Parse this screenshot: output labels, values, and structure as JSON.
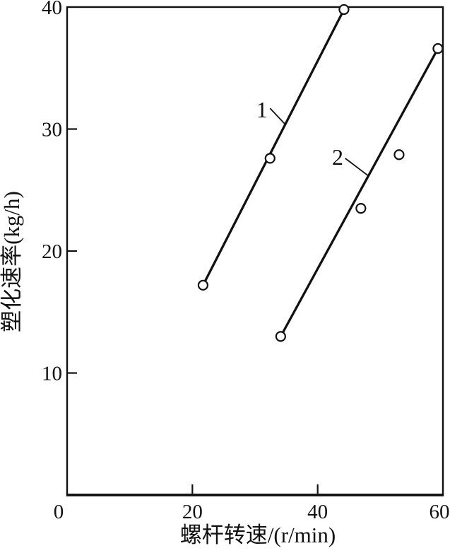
{
  "figure": {
    "background": "#ffffff",
    "ink_color": "#111111",
    "point_fill": "#ffffff"
  },
  "chart_data": {
    "type": "line",
    "title": "",
    "xlabel": "螺杆转速/(r/min)",
    "ylabel": "塑化速率(kg/h)",
    "xlim": [
      0,
      60
    ],
    "ylim": [
      0,
      40
    ],
    "xticks": [
      0,
      20,
      40,
      60
    ],
    "yticks": [
      10,
      20,
      30,
      40
    ],
    "grid": false,
    "legend_position": "none",
    "marker": "open-circle",
    "series": [
      {
        "name": "1",
        "points": [
          [
            21.7,
            17.2
          ],
          [
            32.4,
            27.6
          ],
          [
            44.2,
            39.8
          ]
        ],
        "trend_line": [
          [
            21.7,
            17.2
          ],
          [
            44.2,
            39.8
          ]
        ],
        "label": {
          "text": "1",
          "x": 31.1,
          "y": 31.6,
          "leader": [
            [
              32.4,
              31.7
            ],
            [
              34.8,
              30.4
            ]
          ]
        }
      },
      {
        "name": "2",
        "points": [
          [
            34.1,
            13.0
          ],
          [
            46.9,
            23.5
          ],
          [
            53.0,
            27.9
          ],
          [
            59.2,
            36.6
          ]
        ],
        "trend_line": [
          [
            34.1,
            13.0
          ],
          [
            59.2,
            36.6
          ]
        ],
        "label": {
          "text": "2",
          "x": 43.2,
          "y": 27.7,
          "leader": [
            [
              44.4,
              27.6
            ],
            [
              48.0,
              26.2
            ]
          ]
        }
      }
    ]
  }
}
